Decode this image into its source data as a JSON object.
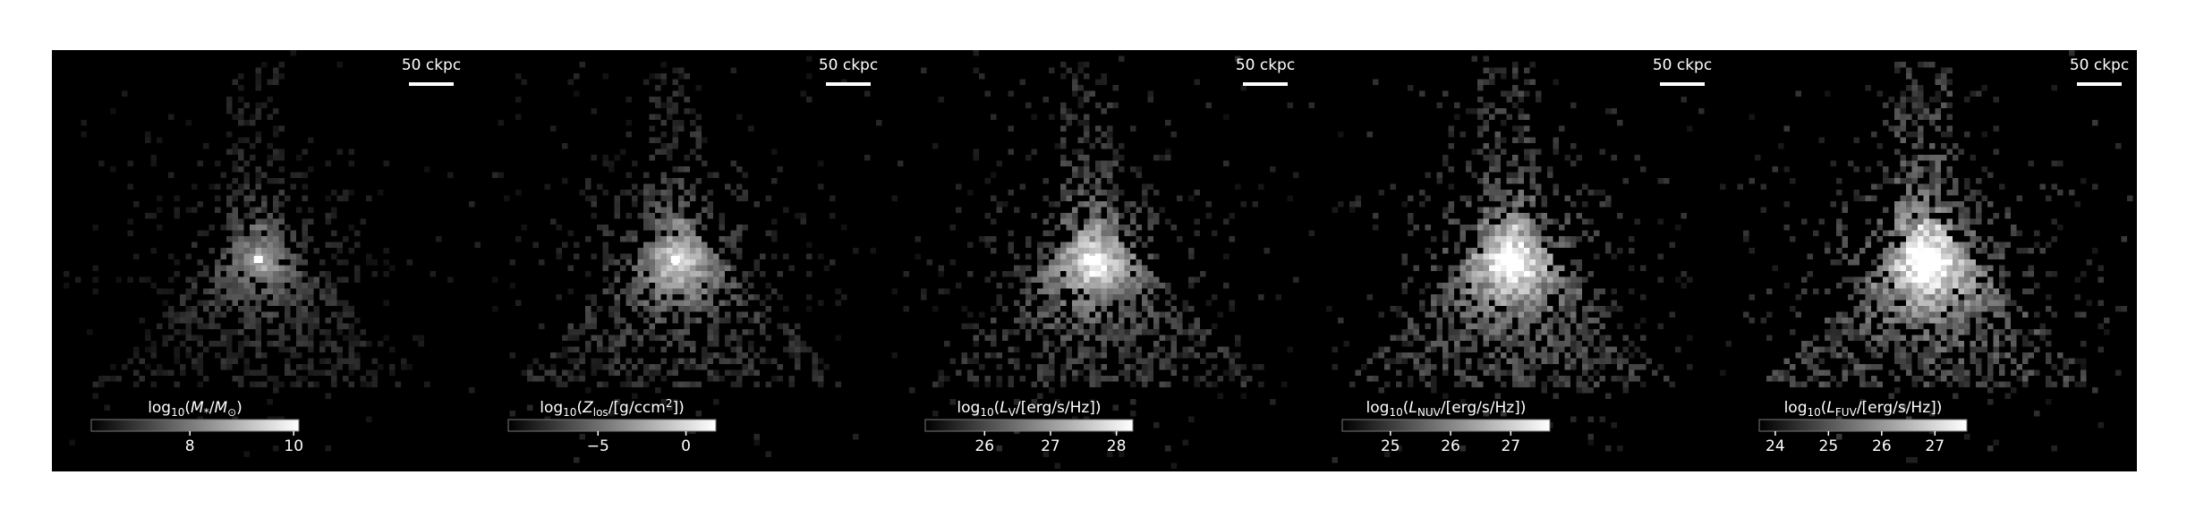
{
  "chart_data": [
    {
      "type": "image-map",
      "scale_label": "50 ckpc",
      "brightness": 0.55,
      "colorbar_label": [
        {
          "text": "log"
        },
        {
          "text": "10",
          "style": "sub"
        },
        {
          "text": "("
        },
        {
          "text": "M",
          "style": "italic"
        },
        {
          "text": "*",
          "style": "sub"
        },
        {
          "text": "/"
        },
        {
          "text": "M",
          "style": "italic"
        },
        {
          "text": "⊙",
          "style": "sub"
        },
        {
          "text": ")"
        }
      ],
      "clim": [
        6.1,
        10.1
      ],
      "cticks": [
        8,
        10
      ]
    },
    {
      "type": "image-map",
      "scale_label": "50 ckpc",
      "brightness": 0.75,
      "colorbar_label": [
        {
          "text": "log"
        },
        {
          "text": "10",
          "style": "sub"
        },
        {
          "text": "("
        },
        {
          "text": "Z",
          "style": "italic"
        },
        {
          "text": "los",
          "style": "sub"
        },
        {
          "text": "/[g/ccm"
        },
        {
          "text": "2",
          "style": "sup"
        },
        {
          "text": "])"
        }
      ],
      "clim": [
        -10.1,
        1.7
      ],
      "cticks": [
        {
          "value": -5,
          "label": "−5"
        },
        0
      ]
    },
    {
      "type": "image-map",
      "scale_label": "50 ckpc",
      "brightness": 0.85,
      "colorbar_label": [
        {
          "text": "log"
        },
        {
          "text": "10",
          "style": "sub"
        },
        {
          "text": "("
        },
        {
          "text": "L",
          "style": "italic"
        },
        {
          "text": "V",
          "style": "sub"
        },
        {
          "text": "/[erg/s/Hz])"
        }
      ],
      "clim": [
        25.1,
        28.25
      ],
      "cticks": [
        26,
        27,
        28
      ]
    },
    {
      "type": "image-map",
      "scale_label": "50 ckpc",
      "brightness": 1.0,
      "colorbar_label": [
        {
          "text": "log"
        },
        {
          "text": "10",
          "style": "sub"
        },
        {
          "text": "("
        },
        {
          "text": "L",
          "style": "italic"
        },
        {
          "text": "NUV",
          "style": "sub"
        },
        {
          "text": "/[erg/s/Hz])"
        }
      ],
      "clim": [
        24.2,
        27.65
      ],
      "cticks": [
        25,
        26,
        27
      ]
    },
    {
      "type": "image-map",
      "scale_label": "50 ckpc",
      "brightness": 1.1,
      "colorbar_label": [
        {
          "text": "log"
        },
        {
          "text": "10",
          "style": "sub"
        },
        {
          "text": "("
        },
        {
          "text": "L",
          "style": "italic"
        },
        {
          "text": "FUV",
          "style": "sub"
        },
        {
          "text": "/[erg/s/Hz])"
        }
      ],
      "clim": [
        23.7,
        27.6
      ],
      "cticks": [
        24,
        25,
        26,
        27
      ]
    }
  ]
}
